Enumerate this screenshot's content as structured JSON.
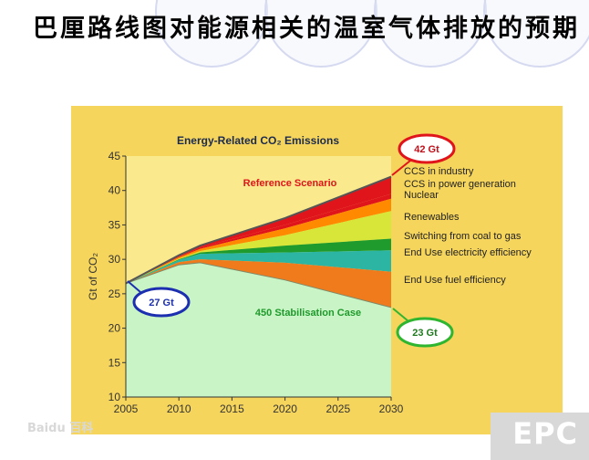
{
  "slide": {
    "title": "巴厘路线图对能源相关的温室气体排放的预期",
    "watermark": "Baidu 百科",
    "logo": "EPC"
  },
  "colors": {
    "panel": "#f6d55c",
    "plot": "#fbe98e",
    "stabilisation": "#c9f5c6",
    "callout_red": "#e0151b",
    "callout_blue": "#1b2fb0",
    "callout_green": "#2fb52f"
  },
  "chart_data": {
    "type": "area",
    "title": "Energy-Related CO₂ Emissions",
    "ylabel": "Gt of CO₂",
    "xlabel": "",
    "x": [
      2005,
      2010,
      2012,
      2020,
      2030
    ],
    "xticks": [
      2005,
      2010,
      2015,
      2020,
      2025,
      2030
    ],
    "yticks": [
      10,
      15,
      20,
      25,
      30,
      35,
      40,
      45
    ],
    "xlim": [
      2005,
      2030
    ],
    "ylim": [
      10,
      45
    ],
    "reference_scenario": [
      26.5,
      30.6,
      32,
      36,
      42
    ],
    "stabilisation_450": [
      26.5,
      29.2,
      29.5,
      27,
      23
    ],
    "wedges": [
      {
        "name": "CCS in industry",
        "color": "#e0151b",
        "values": [
          26.5,
          30.4,
          31.7,
          35.0,
          39.5
        ]
      },
      {
        "name": "CCS in power generation",
        "color": "#ff8a00",
        "values": [
          26.5,
          30.3,
          31.5,
          34.5,
          38.8
        ]
      },
      {
        "name": "Nuclear",
        "color": "#d8e63a",
        "values": [
          26.5,
          30.1,
          31.2,
          33.5,
          37.0
        ]
      },
      {
        "name": "Renewables",
        "color": "#1f9a2c",
        "values": [
          26.5,
          30.0,
          31.0,
          32.0,
          33.0
        ]
      },
      {
        "name": "Switching from coal to gas",
        "color": "#2bb5a2",
        "values": [
          26.5,
          29.9,
          30.8,
          31.0,
          31.3
        ]
      },
      {
        "name": "End Use electricity efficiency",
        "color": "#f07b1c",
        "values": [
          26.5,
          29.6,
          30.0,
          29.5,
          28.2
        ]
      },
      {
        "name": "End Use fuel efficiency",
        "color": "#ffbf18",
        "values": [
          26.5,
          29.2,
          29.5,
          27.0,
          23.0
        ]
      }
    ],
    "annotations": {
      "reference": "Reference Scenario",
      "stabilisation": "450 Stabilisation Case",
      "start_value": "27 Gt",
      "end_reference": "42 Gt",
      "end_stabilisation": "23 Gt"
    },
    "legend_position": "right"
  }
}
